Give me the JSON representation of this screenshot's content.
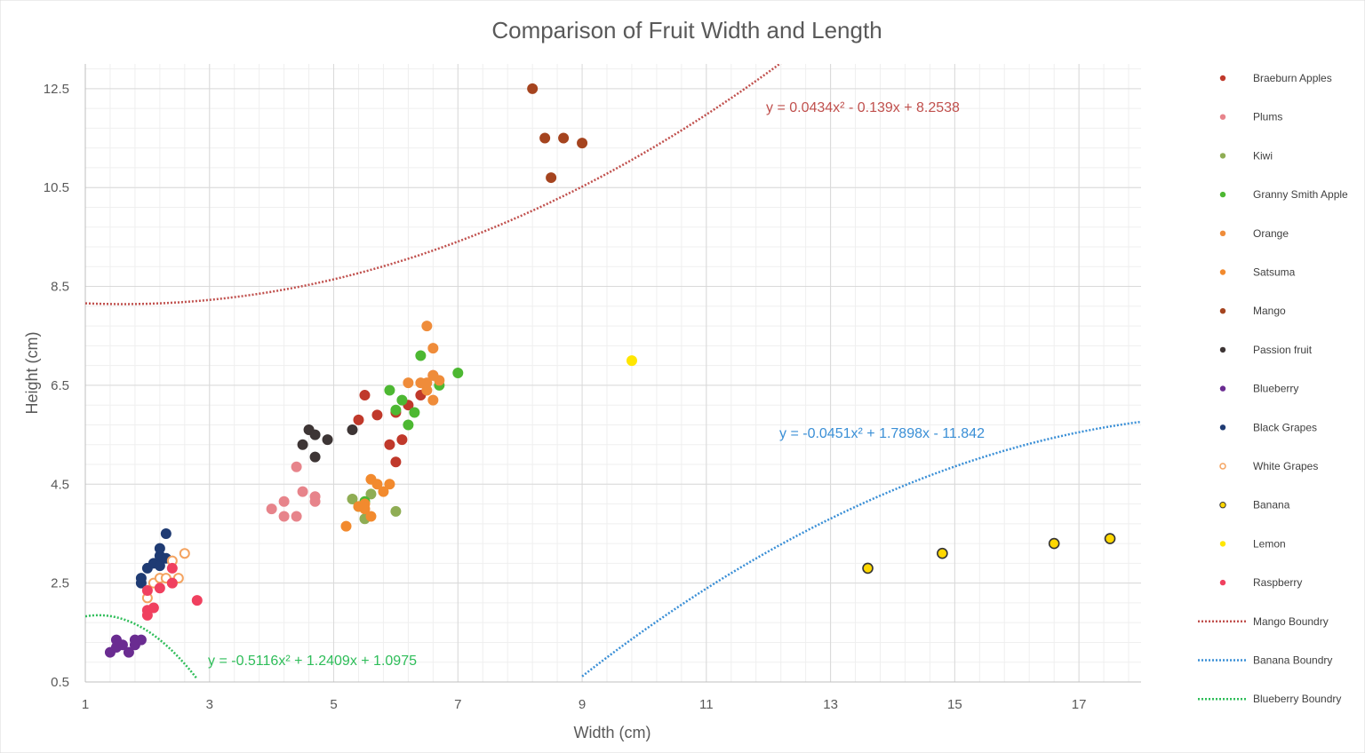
{
  "chart_data": {
    "type": "scatter",
    "title": "Comparison of Fruit Width and Length",
    "xlabel": "Width (cm)",
    "ylabel": "Height (cm)",
    "xlim": [
      1,
      18
    ],
    "ylim": [
      0.5,
      13.0
    ],
    "x_ticks": [
      "1",
      "3",
      "5",
      "7",
      "9",
      "11",
      "13",
      "15",
      "17"
    ],
    "y_ticks": [
      "0.5",
      "2.5",
      "4.5",
      "6.5",
      "8.5",
      "10.5",
      "12.5"
    ],
    "grid": true,
    "minor_grid": true,
    "legend_position": "right",
    "series": [
      {
        "name": "Braeburn Apples",
        "color": "#c0392b",
        "style": "filled",
        "points": [
          [
            5.5,
            6.3
          ],
          [
            5.4,
            5.8
          ],
          [
            5.7,
            5.9
          ],
          [
            6.0,
            5.95
          ],
          [
            6.2,
            6.1
          ],
          [
            6.4,
            6.3
          ],
          [
            5.9,
            5.3
          ],
          [
            6.1,
            5.4
          ],
          [
            6.0,
            4.95
          ],
          [
            6.6,
            6.7
          ]
        ]
      },
      {
        "name": "Plums",
        "color": "#e7848b",
        "style": "filled",
        "points": [
          [
            4.0,
            4.0
          ],
          [
            4.2,
            4.15
          ],
          [
            4.2,
            3.85
          ],
          [
            4.4,
            3.85
          ],
          [
            4.5,
            4.35
          ],
          [
            4.7,
            4.25
          ],
          [
            4.7,
            4.15
          ],
          [
            4.4,
            4.85
          ]
        ]
      },
      {
        "name": "Kiwi",
        "color": "#8fad54",
        "style": "filled",
        "points": [
          [
            5.5,
            3.8
          ],
          [
            6.0,
            3.95
          ],
          [
            5.3,
            4.2
          ],
          [
            5.6,
            4.3
          ]
        ]
      },
      {
        "name": "Granny Smith Apple",
        "color": "#4db832",
        "style": "filled",
        "points": [
          [
            5.9,
            6.4
          ],
          [
            6.1,
            6.2
          ],
          [
            6.0,
            6.0
          ],
          [
            6.3,
            5.95
          ],
          [
            6.2,
            5.7
          ],
          [
            6.4,
            7.1
          ],
          [
            7.0,
            6.75
          ],
          [
            6.7,
            6.5
          ],
          [
            5.4,
            4.05
          ],
          [
            5.5,
            4.15
          ]
        ]
      },
      {
        "name": "Orange",
        "color": "#ef8c3a",
        "style": "filled",
        "points": [
          [
            6.5,
            7.7
          ],
          [
            6.6,
            7.25
          ],
          [
            6.7,
            6.6
          ],
          [
            6.5,
            6.55
          ],
          [
            6.6,
            6.2
          ],
          [
            6.5,
            6.4
          ],
          [
            6.2,
            6.55
          ],
          [
            6.4,
            6.55
          ],
          [
            6.6,
            6.7
          ]
        ]
      },
      {
        "name": "Satsuma",
        "color": "#f28a2e",
        "style": "filled",
        "points": [
          [
            5.2,
            3.65
          ],
          [
            5.4,
            4.05
          ],
          [
            5.5,
            4.0
          ],
          [
            5.6,
            4.6
          ],
          [
            5.7,
            4.5
          ],
          [
            5.8,
            4.35
          ],
          [
            5.9,
            4.5
          ],
          [
            5.6,
            3.85
          ],
          [
            5.5,
            4.1
          ]
        ]
      },
      {
        "name": "Mango",
        "color": "#a5441f",
        "style": "filled",
        "points": [
          [
            8.2,
            12.5
          ],
          [
            8.4,
            11.5
          ],
          [
            8.7,
            11.5
          ],
          [
            9.0,
            11.4
          ],
          [
            8.5,
            10.7
          ]
        ]
      },
      {
        "name": "Passion fruit",
        "color": "#3d3535",
        "style": "filled",
        "points": [
          [
            4.5,
            5.3
          ],
          [
            4.6,
            5.6
          ],
          [
            4.7,
            5.5
          ],
          [
            4.9,
            5.4
          ],
          [
            4.7,
            5.05
          ],
          [
            5.3,
            5.6
          ]
        ]
      },
      {
        "name": "Blueberry",
        "color": "#6a2c91",
        "style": "filled",
        "points": [
          [
            1.4,
            1.1
          ],
          [
            1.5,
            1.2
          ],
          [
            1.6,
            1.25
          ],
          [
            1.5,
            1.35
          ],
          [
            1.7,
            1.1
          ],
          [
            1.8,
            1.25
          ],
          [
            1.8,
            1.35
          ],
          [
            1.9,
            1.35
          ]
        ]
      },
      {
        "name": "Black Grapes",
        "color": "#1f3b73",
        "style": "filled",
        "points": [
          [
            1.9,
            2.5
          ],
          [
            1.9,
            2.6
          ],
          [
            2.0,
            2.8
          ],
          [
            2.1,
            2.9
          ],
          [
            2.2,
            2.85
          ],
          [
            2.2,
            3.05
          ],
          [
            2.2,
            3.2
          ],
          [
            2.3,
            3.5
          ],
          [
            2.3,
            3.0
          ]
        ]
      },
      {
        "name": "White Grapes",
        "color": "#f4a360",
        "style": "hollow",
        "points": [
          [
            2.0,
            2.2
          ],
          [
            2.1,
            2.5
          ],
          [
            2.2,
            2.6
          ],
          [
            2.3,
            2.6
          ],
          [
            2.4,
            2.95
          ],
          [
            2.5,
            2.6
          ],
          [
            2.6,
            3.1
          ],
          [
            2.4,
            2.5
          ]
        ]
      },
      {
        "name": "Banana",
        "color": "#ffd700",
        "style": "outlined",
        "points": [
          [
            13.6,
            2.8
          ],
          [
            14.8,
            3.1
          ],
          [
            16.6,
            3.3
          ],
          [
            17.5,
            3.4
          ]
        ]
      },
      {
        "name": "Lemon",
        "color": "#ffe600",
        "style": "filled",
        "points": [
          [
            9.8,
            7.0
          ]
        ]
      },
      {
        "name": "Raspberry",
        "color": "#f0405f",
        "style": "filled",
        "points": [
          [
            2.0,
            2.35
          ],
          [
            2.0,
            1.85
          ],
          [
            2.0,
            1.95
          ],
          [
            2.1,
            2.0
          ],
          [
            2.2,
            2.4
          ],
          [
            2.4,
            2.8
          ],
          [
            2.8,
            2.15
          ],
          [
            2.4,
            2.5
          ]
        ]
      }
    ],
    "trendlines": [
      {
        "name": "Mango Boundry",
        "color": "#c0504d",
        "equation": "y = 0.0434x² - 0.139x + 8.2538",
        "coefficients": [
          0.0434,
          -0.139,
          8.2538
        ],
        "x_range": [
          1,
          12.2
        ]
      },
      {
        "name": "Banana Boundry",
        "color": "#3a8fd6",
        "equation": "y = -0.0451x² + 1.7898x - 11.842",
        "coefficients": [
          -0.0451,
          1.7898,
          -11.842
        ],
        "x_range": [
          9,
          18
        ]
      },
      {
        "name": "Blueberry Boundry",
        "color": "#2ebd59",
        "equation": "y = -0.5116x² + 1.2409x + 1.0975",
        "coefficients": [
          -0.5116,
          1.2409,
          1.0975
        ],
        "x_range": [
          1,
          2.8
        ]
      }
    ]
  }
}
